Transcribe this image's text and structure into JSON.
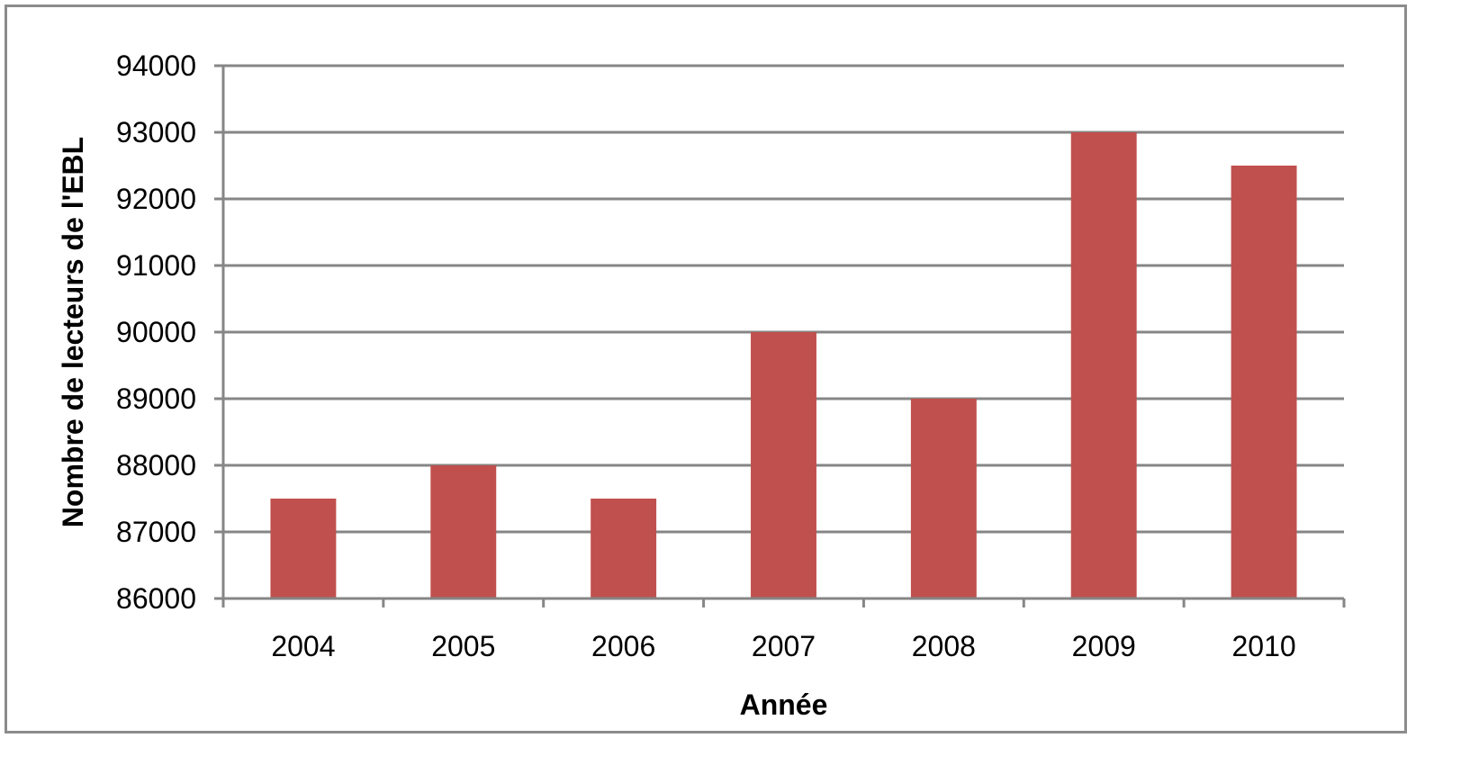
{
  "chart_data": {
    "type": "bar",
    "title": "",
    "xlabel": "Année",
    "ylabel": "Nombre de lecteurs de l'EBL",
    "categories": [
      "2004",
      "2005",
      "2006",
      "2007",
      "2008",
      "2009",
      "2010"
    ],
    "values": [
      87500,
      88000,
      87500,
      90000,
      89000,
      93000,
      92500
    ],
    "ylim": [
      86000,
      94000
    ],
    "yticks": [
      86000,
      87000,
      88000,
      89000,
      90000,
      91000,
      92000,
      93000,
      94000
    ],
    "ytick_labels": [
      "86000",
      "87000",
      "88000",
      "89000",
      "90000",
      "91000",
      "92000",
      "93000",
      "94000"
    ],
    "grid": true,
    "legend": "none",
    "bar_color": "#c0504d",
    "gridline_color": "#868686",
    "frame_color": "#8c8c8c"
  }
}
